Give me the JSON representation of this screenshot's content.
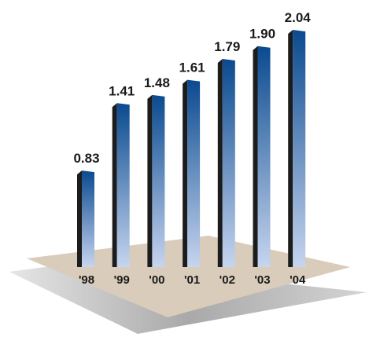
{
  "chart_data": {
    "type": "bar",
    "title": "",
    "xlabel": "",
    "ylabel": "",
    "categories": [
      "'98",
      "'99",
      "'00",
      "'01",
      "'02",
      "'03",
      "'04"
    ],
    "values": [
      0.83,
      1.41,
      1.48,
      1.61,
      1.79,
      1.9,
      2.04
    ],
    "value_labels": [
      "0.83",
      "1.41",
      "1.48",
      "1.61",
      "1.79",
      "1.90",
      "2.04"
    ],
    "ylim": [
      0,
      2.04
    ],
    "grid": false,
    "legend": "none",
    "style": "3d-columns-on-floor",
    "colors": {
      "bar_top": "#0a4a8f",
      "bar_bottom": "#c7d5ef",
      "bar_side": "#1c1c1c",
      "floor_top": "#d9ccbb",
      "floor_shadow": "#9b9b9b",
      "text": "#1a1a1a"
    }
  }
}
